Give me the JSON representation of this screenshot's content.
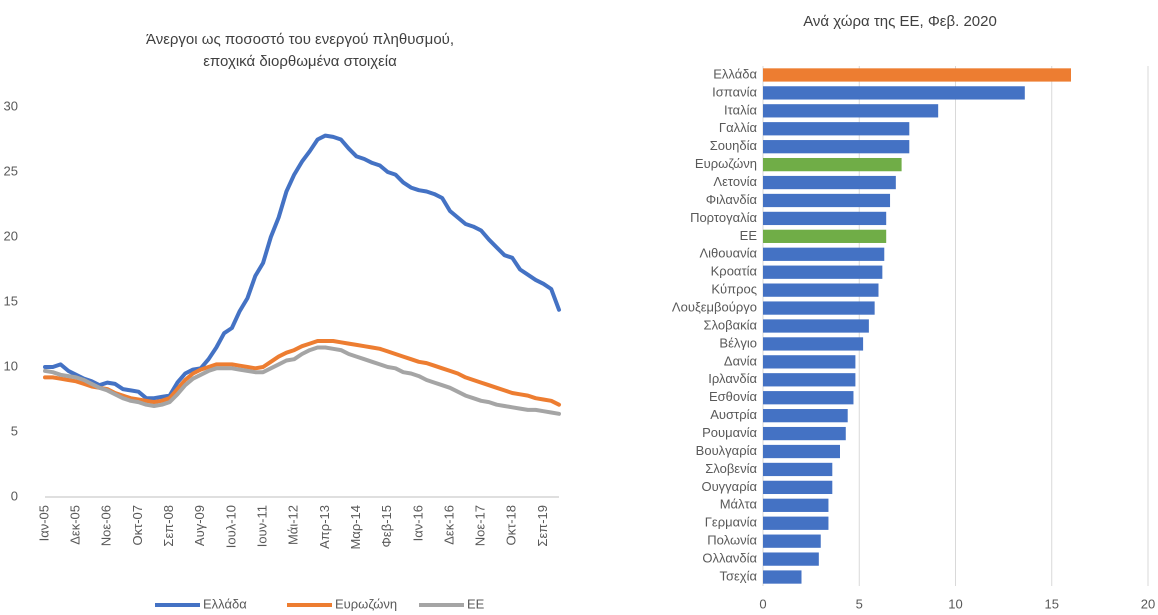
{
  "chart_data": [
    {
      "type": "line",
      "title": [
        "Άνεργοι ως ποσοστό του ενεργού πληθυσμού,",
        "εποχικά διορθωμένα στοιχεία"
      ],
      "categories": [
        "Ιαν-05",
        null,
        null,
        null,
        "Δεκ-05",
        null,
        null,
        null,
        "Νοε-06",
        null,
        null,
        null,
        "Οκτ-07",
        null,
        null,
        null,
        "Σεπ-08",
        null,
        null,
        null,
        "Αυγ-09",
        null,
        null,
        null,
        "Ιουλ-10",
        null,
        null,
        null,
        "Ιουν-11",
        null,
        null,
        null,
        "Μάι-12",
        null,
        null,
        null,
        "Απρ-13",
        null,
        null,
        null,
        "Μαρ-14",
        null,
        null,
        null,
        "Φεβ-15",
        null,
        null,
        null,
        "Ιαν-16",
        null,
        null,
        null,
        "Δεκ-16",
        null,
        null,
        null,
        "Νοε-17",
        null,
        null,
        null,
        "Οκτ-18",
        null,
        null,
        null,
        "Σεπ-19",
        null,
        null
      ],
      "series": [
        {
          "name": "Ελλάδα",
          "color": "#4472c4",
          "values": [
            10.0,
            10.0,
            10.2,
            9.7,
            9.4,
            9.1,
            8.9,
            8.6,
            8.8,
            8.7,
            8.3,
            8.2,
            8.1,
            7.6,
            7.6,
            7.7,
            7.8,
            8.8,
            9.5,
            9.8,
            9.9,
            10.6,
            11.5,
            12.6,
            13.0,
            14.3,
            15.3,
            17.0,
            18.0,
            20.0,
            21.5,
            23.5,
            24.8,
            25.8,
            26.6,
            27.5,
            27.8,
            27.7,
            27.5,
            26.8,
            26.2,
            26.0,
            25.7,
            25.5,
            25.0,
            24.8,
            24.2,
            23.8,
            23.6,
            23.5,
            23.3,
            23.0,
            22.0,
            21.5,
            21.0,
            20.8,
            20.5,
            19.8,
            19.2,
            18.6,
            18.4,
            17.5,
            17.1,
            16.7,
            16.4,
            16.0,
            14.4
          ]
        },
        {
          "name": "Ευρωζώνη",
          "color": "#ed7d31",
          "values": [
            9.2,
            9.2,
            9.1,
            9.0,
            8.9,
            8.7,
            8.5,
            8.4,
            8.3,
            8.0,
            7.8,
            7.6,
            7.5,
            7.4,
            7.3,
            7.4,
            7.6,
            8.3,
            9.0,
            9.5,
            9.8,
            10.0,
            10.2,
            10.2,
            10.2,
            10.1,
            10.0,
            9.9,
            10.0,
            10.4,
            10.8,
            11.1,
            11.3,
            11.6,
            11.8,
            12.0,
            12.0,
            12.0,
            11.9,
            11.8,
            11.7,
            11.6,
            11.5,
            11.4,
            11.2,
            11.0,
            10.8,
            10.6,
            10.4,
            10.3,
            10.1,
            9.9,
            9.7,
            9.5,
            9.2,
            9.0,
            8.8,
            8.6,
            8.4,
            8.2,
            8.0,
            7.9,
            7.8,
            7.6,
            7.5,
            7.4,
            7.1
          ]
        },
        {
          "name": "ΕΕ",
          "color": "#a5a5a5",
          "values": [
            9.7,
            9.6,
            9.4,
            9.3,
            9.2,
            9.0,
            8.7,
            8.4,
            8.2,
            7.9,
            7.6,
            7.4,
            7.3,
            7.1,
            7.0,
            7.1,
            7.3,
            7.9,
            8.6,
            9.1,
            9.4,
            9.7,
            9.9,
            9.9,
            9.9,
            9.8,
            9.7,
            9.6,
            9.6,
            9.9,
            10.2,
            10.5,
            10.6,
            11.0,
            11.3,
            11.5,
            11.5,
            11.4,
            11.3,
            11.0,
            10.8,
            10.6,
            10.4,
            10.2,
            10.0,
            9.9,
            9.6,
            9.5,
            9.3,
            9.0,
            8.8,
            8.6,
            8.4,
            8.1,
            7.8,
            7.6,
            7.4,
            7.3,
            7.1,
            7.0,
            6.9,
            6.8,
            6.7,
            6.7,
            6.6,
            6.5,
            6.4
          ]
        }
      ],
      "ylim": [
        0,
        30
      ],
      "yticks": [
        0,
        5,
        10,
        15,
        20,
        25,
        30
      ],
      "grid": false,
      "legend": "bottom"
    },
    {
      "type": "hbar",
      "title": "Ανά χώρα της ΕΕ, Φεβ. 2020",
      "categories": [
        "Ελλάδα",
        "Ισπανία",
        "Ιταλία",
        "Γαλλία",
        "Σουηδία",
        "Ευρωζώνη",
        "Λετονία",
        "Φιλανδία",
        "Πορτογαλία",
        "ΕΕ",
        "Λιθουανία",
        "Κροατία",
        "Κύπρος",
        "Λουξεμβούργο",
        "Σλοβακία",
        "Βέλγιο",
        "Δανία",
        "Ιρλανδία",
        "Εσθονία",
        "Αυστρία",
        "Ρουμανία",
        "Βουλγαρία",
        "Σλοβενία",
        "Ουγγαρία",
        "Μάλτα",
        "Γερμανία",
        "Πολωνία",
        "Ολλανδία",
        "Τσεχία"
      ],
      "values": [
        16.0,
        13.6,
        9.1,
        7.6,
        7.6,
        7.2,
        6.9,
        6.6,
        6.4,
        6.4,
        6.3,
        6.2,
        6.0,
        5.8,
        5.5,
        5.2,
        4.8,
        4.8,
        4.7,
        4.4,
        4.3,
        4.0,
        3.6,
        3.6,
        3.4,
        3.4,
        3.0,
        2.9,
        2.0
      ],
      "colors": [
        "#ed7d31",
        "#4472c4",
        "#4472c4",
        "#4472c4",
        "#4472c4",
        "#70ad47",
        "#4472c4",
        "#4472c4",
        "#4472c4",
        "#70ad47",
        "#4472c4",
        "#4472c4",
        "#4472c4",
        "#4472c4",
        "#4472c4",
        "#4472c4",
        "#4472c4",
        "#4472c4",
        "#4472c4",
        "#4472c4",
        "#4472c4",
        "#4472c4",
        "#4472c4",
        "#4472c4",
        "#4472c4",
        "#4472c4",
        "#4472c4",
        "#4472c4",
        "#4472c4"
      ],
      "xlim": [
        0,
        20
      ],
      "xticks": [
        0,
        5,
        10,
        15,
        20
      ],
      "grid": true
    }
  ]
}
